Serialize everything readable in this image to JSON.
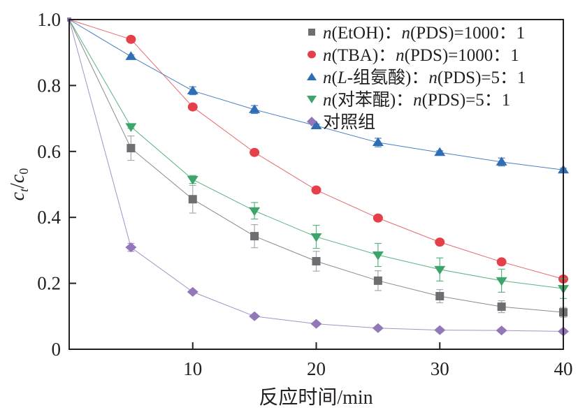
{
  "chart_data": {
    "type": "line",
    "title": "",
    "xlabel": "反应时间/min",
    "ylabel": {
      "c": "c",
      "sub1": "t",
      "slash": "/",
      "c2": "c",
      "sub2": "0"
    },
    "xlim": [
      0,
      40
    ],
    "ylim": [
      0,
      1.0
    ],
    "xticks": [
      10,
      20,
      30,
      40
    ],
    "xtick_labels": [
      "10",
      "20",
      "30",
      "40"
    ],
    "yticks": [
      0,
      0.2,
      0.4,
      0.6,
      0.8,
      1.0
    ],
    "ytick_labels": [
      "0",
      "0.2",
      "0.4",
      "0.6",
      "0.8",
      "1.0"
    ],
    "grid": false,
    "legend_position": "top-right",
    "x": [
      0,
      5,
      10,
      15,
      20,
      25,
      30,
      35,
      40
    ],
    "series": [
      {
        "name": "n(EtOH)：n(PDS)=1000：1",
        "legend": {
          "n1": "n",
          "a": "(EtOH)：",
          "n2": "n",
          "b": "(PDS)=1000：1"
        },
        "marker": "square",
        "color": "#6d6e71",
        "line_color": "#8a8a8a",
        "values": [
          1.0,
          0.61,
          0.455,
          0.343,
          0.267,
          0.208,
          0.161,
          0.129,
          0.112
        ],
        "errors": [
          0,
          0.037,
          0.042,
          0.035,
          0.03,
          0.03,
          0.02,
          0.018,
          0.015
        ]
      },
      {
        "name": "n(TBA)：n(PDS)=1000：1",
        "legend": {
          "n1": "n",
          "a": "(TBA)：",
          "n2": "n",
          "b": "(PDS)=1000：1"
        },
        "marker": "circle",
        "color": "#e5404a",
        "line_color": "#e86a6f",
        "values": [
          1.0,
          0.94,
          0.735,
          0.597,
          0.483,
          0.398,
          0.325,
          0.265,
          0.213
        ],
        "errors": [
          0,
          0.006,
          0.005,
          0.005,
          0.005,
          0.005,
          0.005,
          0.005,
          0.005
        ]
      },
      {
        "name": "n(L-组氨酸)：n(PDS)=5：1",
        "legend": {
          "n1": "n",
          "a": "(",
          "italic": "L",
          "a2": "-组氨酸)：",
          "n2": "n",
          "b": "(PDS)=5：1"
        },
        "marker": "triangle-up",
        "color": "#2f6db5",
        "line_color": "#4a80c0",
        "values": [
          1.0,
          0.888,
          0.784,
          0.727,
          0.678,
          0.627,
          0.597,
          0.568,
          0.544
        ],
        "errors": [
          0,
          0.005,
          0.012,
          0.012,
          0.005,
          0.013,
          0.005,
          0.012,
          0.005
        ]
      },
      {
        "name": "n(对苯醌)：n(PDS)=5：1",
        "legend": {
          "n1": "n",
          "a": "(对苯醌)：",
          "n2": "n",
          "b": "(PDS)=5：1"
        },
        "marker": "triangle-down",
        "color": "#3da46a",
        "line_color": "#5bb382",
        "values": [
          1.0,
          0.675,
          0.515,
          0.42,
          0.341,
          0.286,
          0.242,
          0.208,
          0.184
        ],
        "errors": [
          0,
          0.005,
          0.012,
          0.025,
          0.035,
          0.035,
          0.035,
          0.035,
          0.03
        ]
      },
      {
        "name": "对照组",
        "legend": {
          "n1": "",
          "a": "对照组",
          "n2": "",
          "b": ""
        },
        "marker": "diamond",
        "color": "#9278b8",
        "line_color": "#a690c8",
        "values": [
          1.0,
          0.309,
          0.174,
          0.1,
          0.077,
          0.064,
          0.058,
          0.057,
          0.054
        ],
        "errors": [
          0,
          0.012,
          0.005,
          0.005,
          0.005,
          0.005,
          0.005,
          0.005,
          0.005
        ]
      }
    ]
  }
}
